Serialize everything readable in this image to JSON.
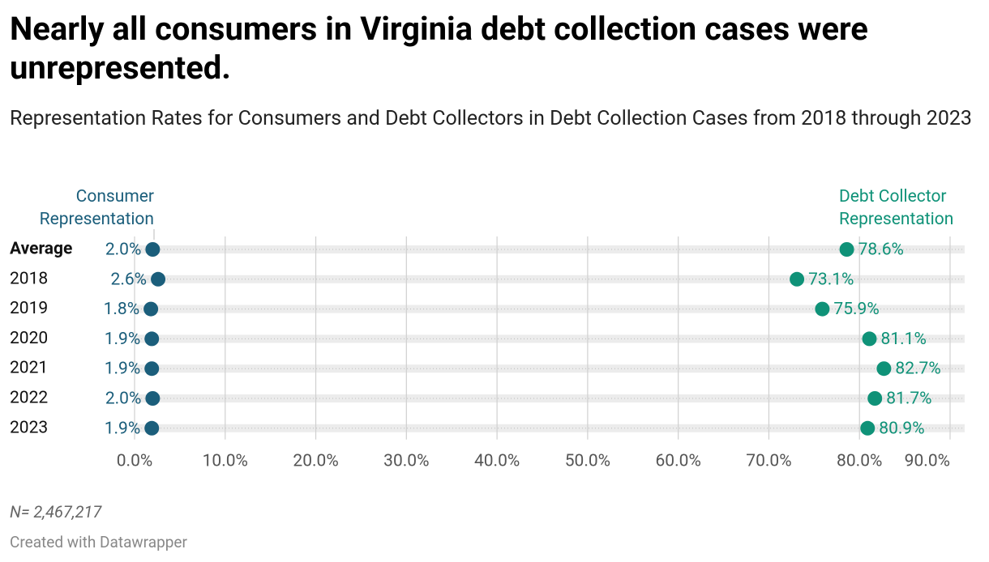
{
  "chart_data": {
    "type": "dot",
    "title": "Nearly all consumers in Virginia debt collection cases were unrepresented.",
    "subtitle": "Representation Rates for Consumers and Debt Collectors in Debt Collection Cases from 2018 through 2023",
    "categories": [
      "Average",
      "2018",
      "2019",
      "2020",
      "2021",
      "2022",
      "2023"
    ],
    "series": [
      {
        "name": "Consumer Representation",
        "color": "#1b5e7b",
        "values": [
          2.0,
          2.6,
          1.8,
          1.9,
          1.9,
          2.0,
          1.9
        ],
        "value_labels": [
          "2.0%",
          "2.6%",
          "1.8%",
          "1.9%",
          "1.9%",
          "2.0%",
          "1.9%"
        ]
      },
      {
        "name": "Debt Collector Representation",
        "color": "#0f9278",
        "values": [
          78.6,
          73.1,
          75.9,
          81.1,
          82.7,
          81.7,
          80.9
        ],
        "value_labels": [
          "78.6%",
          "73.1%",
          "75.9%",
          "81.1%",
          "82.7%",
          "81.7%",
          "80.9%"
        ]
      }
    ],
    "xlim": [
      0,
      90
    ],
    "xticks": [
      {
        "value": 0,
        "label": "0.0%"
      },
      {
        "value": 10,
        "label": "10.0%"
      },
      {
        "value": 20,
        "label": "20.0%"
      },
      {
        "value": 30,
        "label": "30.0%"
      },
      {
        "value": 40,
        "label": "40.0%"
      },
      {
        "value": 50,
        "label": "50.0%"
      },
      {
        "value": 60,
        "label": "60.0%"
      },
      {
        "value": 70,
        "label": "70.0%"
      },
      {
        "value": 80,
        "label": "80.0%"
      },
      {
        "value": 90,
        "label": "90.0%"
      }
    ],
    "grid": true,
    "note": "N= 2,467,217",
    "credit": "Created with Datawrapper"
  }
}
